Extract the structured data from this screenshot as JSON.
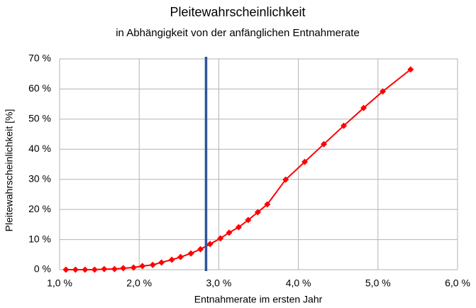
{
  "chart_data": {
    "type": "line",
    "title": "Pleitewahrscheinlichkeit",
    "subtitle": "in Abhängigkeit von der anfänglichen Entnahmerate",
    "x_label": "Entnahmerate im ersten Jahr",
    "y_label": "Pleitewahrscheinlichkeit [%]",
    "x": [
      1.08,
      1.2,
      1.32,
      1.44,
      1.56,
      1.69,
      1.8,
      1.93,
      2.04,
      2.17,
      2.28,
      2.41,
      2.52,
      2.65,
      2.77,
      2.89,
      3.02,
      3.13,
      3.25,
      3.37,
      3.49,
      3.61,
      3.84,
      4.08,
      4.32,
      4.57,
      4.82,
      5.06,
      5.41
    ],
    "values": [
      0,
      0,
      0,
      0,
      0.2,
      0.2,
      0.5,
      0.7,
      1.2,
      1.6,
      2.4,
      3.3,
      4.2,
      5.4,
      6.8,
      8.5,
      10.4,
      12.3,
      14.1,
      16.5,
      19.1,
      21.7,
      29.9,
      35.8,
      41.7,
      47.8,
      53.7,
      59.2,
      66.5
    ],
    "color": "#ff0000",
    "marker": "diamond",
    "reference_line": {
      "x": 2.84,
      "color": "#2f5597"
    },
    "xlim": [
      1,
      6
    ],
    "xticks": [
      {
        "value": 1,
        "label": "1,0 %"
      },
      {
        "value": 2,
        "label": "2,0 %"
      },
      {
        "value": 3,
        "label": "3,0 %"
      },
      {
        "value": 4,
        "label": "4,0 %"
      },
      {
        "value": 5,
        "label": "5,0 %"
      },
      {
        "value": 6,
        "label": "6,0 %"
      }
    ],
    "ylim": [
      0,
      70
    ],
    "yticks": [
      {
        "value": 0,
        "label": "0 %"
      },
      {
        "value": 10,
        "label": "10 %"
      },
      {
        "value": 20,
        "label": "20 %"
      },
      {
        "value": 30,
        "label": "30 %"
      },
      {
        "value": 40,
        "label": "40 %"
      },
      {
        "value": 50,
        "label": "50 %"
      },
      {
        "value": 60,
        "label": "60 %"
      },
      {
        "value": 70,
        "label": "70 %"
      }
    ],
    "grid": true
  }
}
